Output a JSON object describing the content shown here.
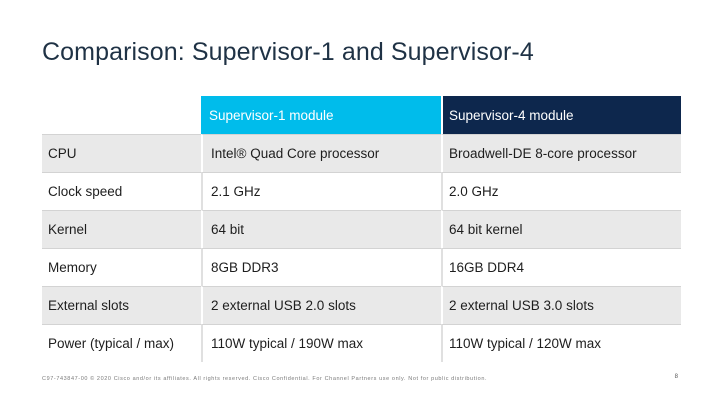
{
  "slide": {
    "title": "Comparison: Supervisor-1 and Supervisor-4",
    "footer": "C97-743847-00 © 2020 Cisco and/or its affiliates. All rights reserved. Cisco Confidential. For Channel Partners use only. Not for public distribution.",
    "page_number": "8"
  },
  "table": {
    "headers": [
      "",
      "Supervisor-1 module",
      "Supervisor-4 module"
    ],
    "rows": [
      {
        "label": "CPU",
        "sup1": "Intel® Quad Core processor",
        "sup4": "Broadwell-DE 8-core processor"
      },
      {
        "label": "Clock speed",
        "sup1": "2.1 GHz",
        "sup4": "2.0 GHz"
      },
      {
        "label": "Kernel",
        "sup1": "64 bit",
        "sup4": "64 bit kernel"
      },
      {
        "label": "Memory",
        "sup1": "8GB DDR3",
        "sup4": "16GB DDR4"
      },
      {
        "label": "External slots",
        "sup1": "2 external USB 2.0 slots",
        "sup4": "2 external USB 3.0 slots"
      },
      {
        "label": "Power (typical / max)",
        "sup1": "110W typical / 190W max",
        "sup4": "110W typical / 120W max"
      }
    ]
  },
  "colors": {
    "header_sup1": "#00bceb",
    "header_sup4": "#0d274d",
    "row_shade": "#e9e9e9",
    "title_color": "#1f3245"
  }
}
